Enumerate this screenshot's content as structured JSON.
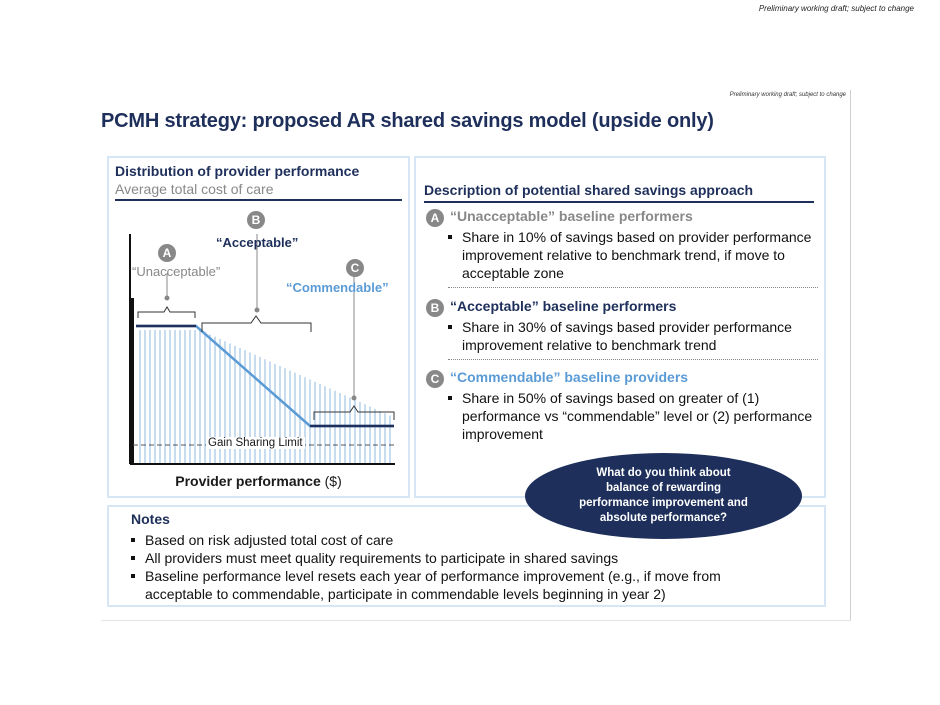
{
  "header_note": "Preliminary working draft; subject to change",
  "slide": {
    "note": "Preliminary working draft; subject to change",
    "title": "PCMH strategy: proposed AR shared savings model (upside only)"
  },
  "left_panel": {
    "title": "Distribution of provider performance",
    "subtitle": "Average total cost of care",
    "markers": {
      "A": "A",
      "B": "B",
      "C": "C"
    },
    "label_unacceptable": "“Unacceptable”",
    "label_acceptable": "“Acceptable”",
    "label_commendable": "“Commendable”",
    "gain_sharing_label": "Gain Sharing Limit",
    "x_label": "Provider performance",
    "x_unit": "($)"
  },
  "right_panel": {
    "title": "Description of potential shared savings approach",
    "sections": [
      {
        "marker": "A",
        "heading": "“Unacceptable” baseline performers",
        "bullet": "Share in 10% of savings based on provider performance improvement relative to benchmark trend, if move to acceptable zone"
      },
      {
        "marker": "B",
        "heading": "“Acceptable” baseline performers",
        "bullet": "Share in 30% of savings based provider performance improvement relative to benchmark trend"
      },
      {
        "marker": "C",
        "heading": "“Commendable” baseline providers",
        "bullet": "Share in 50% of savings based on greater of (1) performance vs “commendable” level or (2) performance improvement"
      }
    ]
  },
  "callout": "What do you think about balance of rewarding performance improvement and absolute performance?",
  "notes": {
    "title": "Notes",
    "items": [
      "Based on risk adjusted total cost of care",
      "All providers must meet quality requirements to participate in shared savings",
      "Baseline performance level resets each year of performance improvement (e.g., if move from acceptable to commendable, participate in commendable levels beginning in year 2)"
    ]
  },
  "colors": {
    "navy": "#1d2f5a",
    "light_blue": "#5b9bd5",
    "grey": "#888888",
    "panel_border": "#d6e6f5"
  }
}
